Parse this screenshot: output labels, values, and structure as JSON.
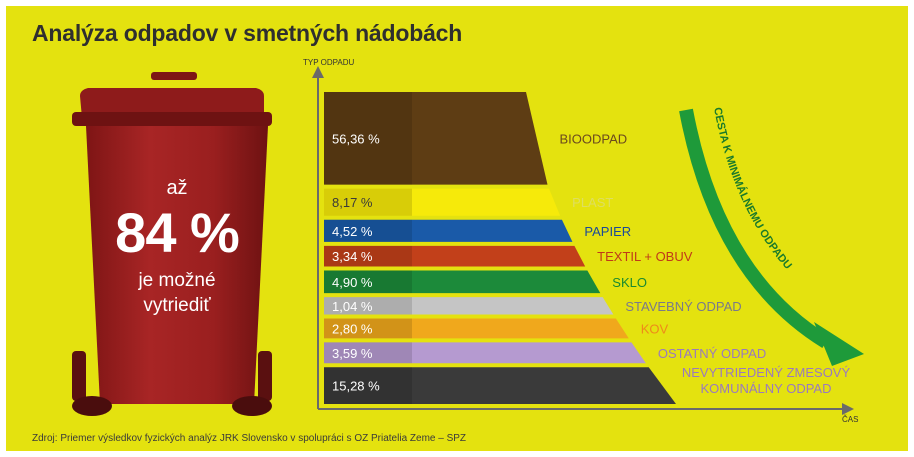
{
  "title": "Analýza odpadov v smetných nádobách",
  "source": "Zdroj: Priemer výsledkov fyzických analýz JRK Slovensko v spolupráci s OZ Priatelia Zeme – SPZ",
  "bin": {
    "prefix": "až",
    "value": "84 %",
    "caption": "je možné\nvytriediť",
    "color": "#a32323"
  },
  "arrow_label": "CESTA K MINIMÁLNEMU ODPADU",
  "arrow_color": "#1e9a3a",
  "chart_data": {
    "type": "bar",
    "orientation": "horizontal",
    "ylabel": "TYP ODPADU",
    "xlabel": "ČAS",
    "categories": [
      "BIOODPAD",
      "PLAST",
      "PAPIER",
      "TEXTIL + OBUV",
      "SKLO",
      "STAVEBNÝ ODPAD",
      "KOV",
      "OSTATNÝ ODPAD",
      "NEVYTRIEDENÝ ZMESOVÝ KOMUNÁLNY ODPAD"
    ],
    "values": [
      56.36,
      8.17,
      4.52,
      3.34,
      4.9,
      1.04,
      2.8,
      3.59,
      15.28
    ],
    "value_labels": [
      "56,36 %",
      "8,17 %",
      "4,52 %",
      "3,34 %",
      "4,90 %",
      "1,04 %",
      "2,80 %",
      "3,59 %",
      "15,28 %"
    ],
    "colors": [
      "#5e3d14",
      "#f6ea0a",
      "#1a5aa8",
      "#c2401a",
      "#1c8a3a",
      "#c5c5c5",
      "#f0a81c",
      "#b59ad0",
      "#3a3a3a"
    ],
    "label_colors": [
      "#6b4a1e",
      "#dede60",
      "#1a4a9a",
      "#c03a18",
      "#1a8a30",
      "#7a7a8a",
      "#ee8a1a",
      "#9a7abe",
      "#9a7abe"
    ]
  }
}
